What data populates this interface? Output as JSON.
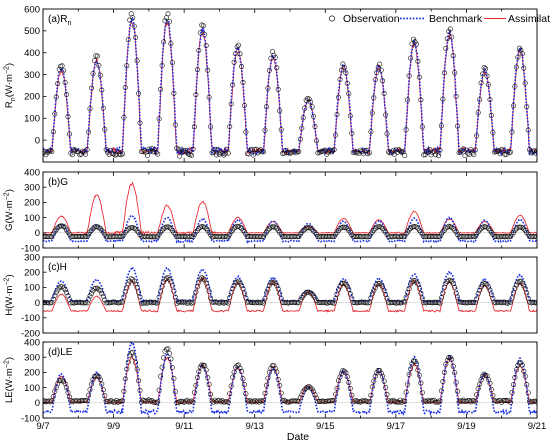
{
  "chart_data": {
    "type": "line",
    "xlabel": "Date",
    "x_ticks": [
      "9/7",
      "9/9",
      "9/11",
      "9/13",
      "9/15",
      "9/17",
      "9/19",
      "9/21"
    ],
    "xlim": [
      7,
      21
    ],
    "legend": {
      "placement": "top-right",
      "entries": [
        "Observation",
        "Benchmark",
        "Assimilation"
      ]
    },
    "series_styles": [
      {
        "name": "Observation",
        "marker": "open-circle",
        "color": "#000000"
      },
      {
        "name": "Benchmark",
        "line": "dotted",
        "color": "#1a2ee6"
      },
      {
        "name": "Assimilation",
        "line": "solid",
        "color": "#e8242b"
      }
    ],
    "panels": [
      {
        "label": "(a)R",
        "label_sub": "n",
        "ylabel_main": "R",
        "ylabel_sub": "n",
        "ylabel_unit": "(W·m",
        "ylabel_sup": "−2",
        "ylabel_close": ")",
        "ylim": [
          -100,
          600
        ],
        "yticks": [
          0,
          100,
          200,
          300,
          400,
          500,
          600
        ],
        "tick_labels": [
          "0",
          "100",
          "200",
          "300",
          "400",
          "500",
          "600"
        ],
        "daily_peaks": [
          340,
          375,
          580,
          560,
          520,
          430,
          400,
          190,
          345,
          345,
          450,
          500,
          325,
          420
        ],
        "night_value": -50,
        "observation": {
          "peaks": [
            340,
            380,
            580,
            570,
            530,
            440,
            405,
            195,
            345,
            345,
            460,
            505,
            330,
            425
          ],
          "night": -55
        },
        "benchmark": {
          "peaks": [
            330,
            360,
            560,
            545,
            505,
            420,
            390,
            185,
            340,
            340,
            445,
            490,
            320,
            415
          ],
          "night": -50
        },
        "assimilation": {
          "peaks": [
            320,
            370,
            555,
            540,
            500,
            415,
            385,
            180,
            335,
            335,
            440,
            485,
            315,
            410
          ],
          "night": -50
        }
      },
      {
        "label": "(b)G",
        "ylabel_main": "G",
        "ylabel_unit": "(W·m",
        "ylabel_sup": "−2",
        "ylabel_close": ")",
        "ylim": [
          -100,
          400
        ],
        "yticks": [
          -100,
          0,
          100,
          200,
          300,
          400
        ],
        "tick_labels": [
          "-100",
          "0",
          "100",
          "200",
          "300",
          "400"
        ],
        "observation": {
          "peaks": [
            45,
            40,
            35,
            38,
            40,
            42,
            40,
            35,
            38,
            40,
            42,
            42,
            40,
            38
          ],
          "night": -25
        },
        "benchmark": {
          "peaks": [
            55,
            50,
            110,
            100,
            90,
            85,
            80,
            60,
            75,
            80,
            95,
            100,
            80,
            85
          ],
          "night": -55
        },
        "assimilation": {
          "peaks": [
            110,
            250,
            325,
            180,
            205,
            100,
            75,
            40,
            95,
            85,
            140,
            90,
            75,
            115
          ],
          "night": 0
        }
      },
      {
        "label": "(c)H",
        "ylabel_main": "H",
        "ylabel_unit": "(W·m",
        "ylabel_sup": "−2",
        "ylabel_close": ")",
        "ylim": [
          -200,
          300
        ],
        "yticks": [
          -200,
          -100,
          0,
          100,
          200,
          300
        ],
        "tick_labels": [
          "-200",
          "-100",
          "0",
          "100",
          "200",
          "300"
        ],
        "observation": {
          "peaks": [
            105,
            95,
            155,
            165,
            160,
            140,
            135,
            70,
            130,
            125,
            145,
            150,
            125,
            140
          ],
          "night": 0
        },
        "benchmark": {
          "peaks": [
            140,
            150,
            230,
            225,
            220,
            170,
            165,
            80,
            155,
            160,
            185,
            200,
            150,
            180
          ],
          "night": 10
        },
        "assimilation": {
          "peaks": [
            55,
            40,
            140,
            150,
            160,
            130,
            140,
            70,
            120,
            125,
            145,
            135,
            115,
            125
          ],
          "night": -55
        }
      },
      {
        "label": "(d)LE",
        "ylabel_main": "LE",
        "ylabel_unit": "(W·m",
        "ylabel_sup": "−2",
        "ylabel_close": ")",
        "ylim": [
          -100,
          400
        ],
        "yticks": [
          -100,
          0,
          100,
          200,
          300,
          400
        ],
        "tick_labels": [
          "-100",
          "0",
          "100",
          "200",
          "300",
          "400"
        ],
        "observation": {
          "peaks": [
            150,
            180,
            330,
            355,
            255,
            245,
            240,
            105,
            210,
            210,
            270,
            300,
            185,
            260
          ],
          "night": 10
        },
        "benchmark": {
          "peaks": [
            190,
            200,
            395,
            320,
            245,
            235,
            225,
            100,
            210,
            215,
            300,
            310,
            190,
            285
          ],
          "night": -60
        },
        "assimilation": {
          "peaks": [
            175,
            170,
            300,
            295,
            250,
            235,
            235,
            110,
            205,
            205,
            250,
            290,
            180,
            240
          ],
          "night": 5
        }
      }
    ]
  }
}
